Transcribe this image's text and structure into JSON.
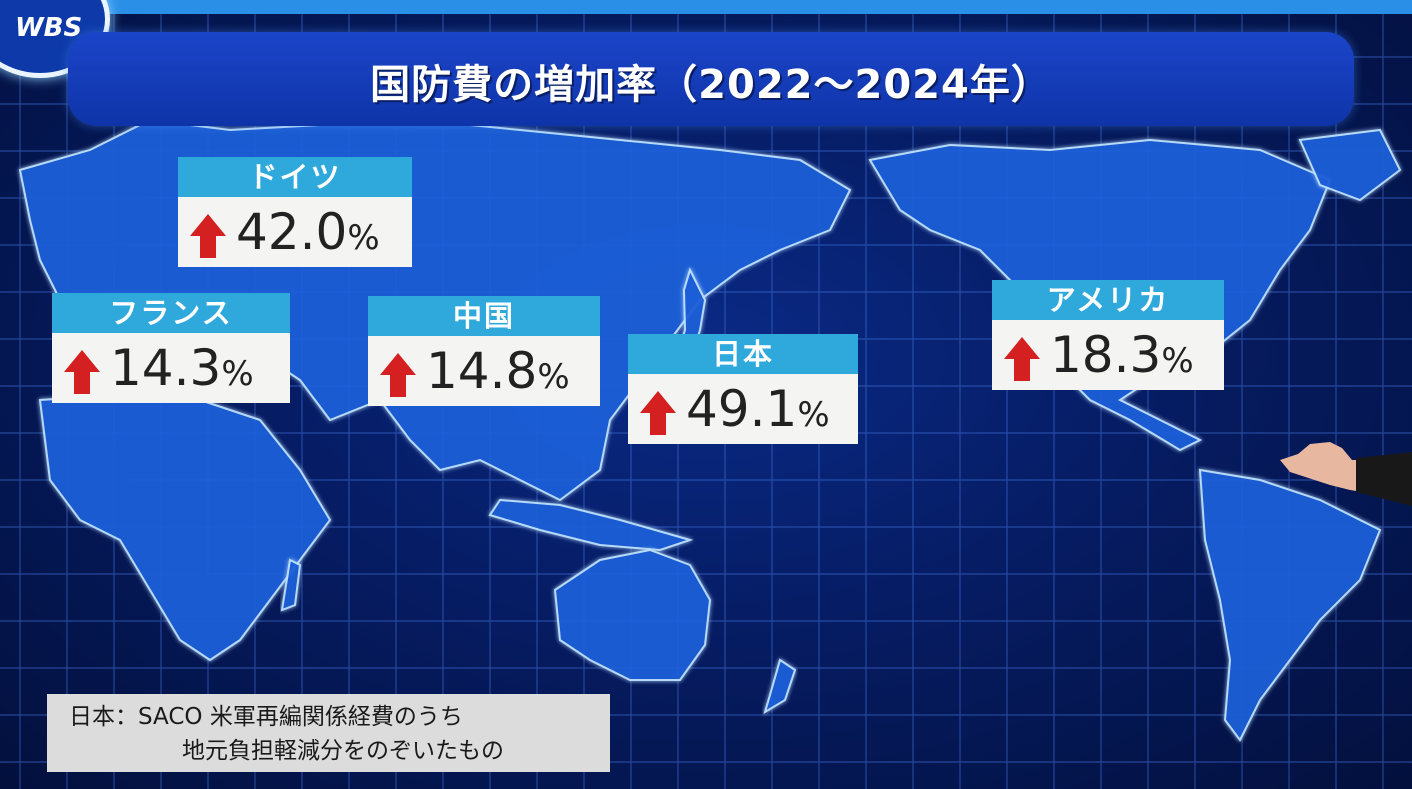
{
  "logo": {
    "text": "WBS"
  },
  "title": "国防費の増加率（2022〜2024年）",
  "cards": [
    {
      "country": "ドイツ",
      "value": "42.0",
      "unit": "%"
    },
    {
      "country": "フランス",
      "value": "14.3",
      "unit": "%"
    },
    {
      "country": "中国",
      "value": "14.8",
      "unit": "%"
    },
    {
      "country": "日本",
      "value": "49.1",
      "unit": "%"
    },
    {
      "country": "アメリカ",
      "value": "18.3",
      "unit": "%"
    }
  ],
  "note": {
    "line1": "日本：SACO 米軍再編関係経費のうち",
    "line2": "地元負担軽減分をのぞいたもの"
  },
  "colors": {
    "header": "#2fa8dc",
    "arrow": "#d42020",
    "title_bar": "#1b45c9",
    "land": "#1d5fd8"
  },
  "icons": {
    "increase": "up-arrow-icon"
  }
}
